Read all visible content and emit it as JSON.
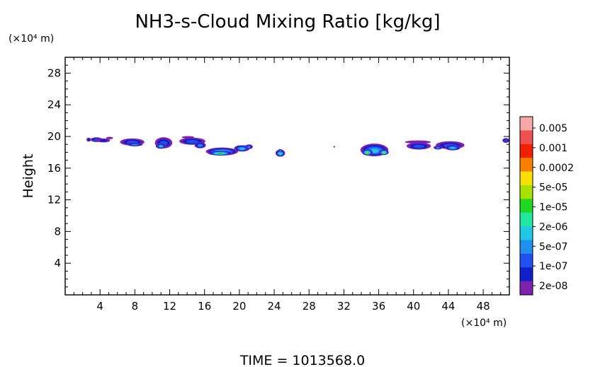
{
  "chart_data": {
    "type": "heatmap",
    "title": "NH3-s-Cloud Mixing Ratio [kg/kg]",
    "ylabel": "Height",
    "x_unit": "(×10⁴ m)",
    "y_unit": "(×10⁴ m)",
    "xlim": [
      0,
      51
    ],
    "ylim": [
      0,
      30
    ],
    "x_ticks": [
      4,
      8,
      12,
      16,
      20,
      24,
      28,
      32,
      36,
      40,
      44,
      48
    ],
    "y_ticks": [
      4,
      8,
      12,
      16,
      20,
      24,
      28
    ],
    "x_minor_step": 1,
    "y_minor_step": 1,
    "colorbar": {
      "labels": [
        "0.005",
        "0.001",
        "0.0002",
        "5e-05",
        "1e-05",
        "2e-06",
        "5e-07",
        "1e-07",
        "2e-08"
      ],
      "colors": [
        "#f8a8a8",
        "#f05050",
        "#f02000",
        "#f88000",
        "#f8e000",
        "#a8e000",
        "#20d820",
        "#20e8a0",
        "#20c8e8",
        "#2090f0",
        "#2050f0",
        "#1020c8",
        "#8020b0"
      ]
    },
    "cloud_regions": [
      {
        "x": 2.7,
        "y": 19.6,
        "w": 0.5,
        "h": 0.5,
        "level": 1
      },
      {
        "x": 3.6,
        "y": 19.6,
        "w": 1.4,
        "h": 0.6,
        "level": 2
      },
      {
        "x": 4.4,
        "y": 19.5,
        "w": 1.5,
        "h": 0.5,
        "level": 1
      },
      {
        "x": 5.1,
        "y": 19.8,
        "w": 0.8,
        "h": 0.3,
        "level": 0
      },
      {
        "x": 7.7,
        "y": 19.3,
        "w": 2.8,
        "h": 0.9,
        "level": 2
      },
      {
        "x": 8.0,
        "y": 19.0,
        "w": 1.8,
        "h": 0.5,
        "level": 3
      },
      {
        "x": 11.3,
        "y": 19.2,
        "w": 2.0,
        "h": 1.4,
        "level": 2
      },
      {
        "x": 11.0,
        "y": 18.8,
        "w": 1.2,
        "h": 0.7,
        "level": 4
      },
      {
        "x": 14.6,
        "y": 19.4,
        "w": 3.0,
        "h": 0.9,
        "level": 2
      },
      {
        "x": 14.1,
        "y": 19.9,
        "w": 1.4,
        "h": 0.3,
        "level": 0
      },
      {
        "x": 15.5,
        "y": 18.9,
        "w": 1.3,
        "h": 0.8,
        "level": 3
      },
      {
        "x": 18.0,
        "y": 18.1,
        "w": 3.7,
        "h": 1.0,
        "level": 5
      },
      {
        "x": 17.8,
        "y": 17.9,
        "w": 2.8,
        "h": 0.6,
        "level": 6
      },
      {
        "x": 20.3,
        "y": 18.5,
        "w": 1.8,
        "h": 0.8,
        "level": 4
      },
      {
        "x": 21.1,
        "y": 18.7,
        "w": 0.9,
        "h": 0.6,
        "level": 3
      },
      {
        "x": 24.7,
        "y": 17.9,
        "w": 1.1,
        "h": 0.9,
        "level": 5
      },
      {
        "x": 24.7,
        "y": 18.2,
        "w": 0.6,
        "h": 0.4,
        "level": 3
      },
      {
        "x": 30.9,
        "y": 18.7,
        "w": 0.2,
        "h": 0.2,
        "level": 0
      },
      {
        "x": 35.5,
        "y": 18.3,
        "w": 3.2,
        "h": 1.6,
        "level": 4
      },
      {
        "x": 34.7,
        "y": 18.0,
        "w": 1.2,
        "h": 0.8,
        "level": 7
      },
      {
        "x": 36.6,
        "y": 18.0,
        "w": 1.1,
        "h": 0.7,
        "level": 7
      },
      {
        "x": 40.6,
        "y": 18.8,
        "w": 2.8,
        "h": 0.9,
        "level": 2
      },
      {
        "x": 40.5,
        "y": 19.3,
        "w": 3.0,
        "h": 0.4,
        "level": 0
      },
      {
        "x": 44.2,
        "y": 18.9,
        "w": 3.3,
        "h": 1.0,
        "level": 2
      },
      {
        "x": 44.5,
        "y": 18.6,
        "w": 1.8,
        "h": 0.7,
        "level": 4
      },
      {
        "x": 42.8,
        "y": 18.6,
        "w": 1.0,
        "h": 0.5,
        "level": 3
      },
      {
        "x": 50.6,
        "y": 19.5,
        "w": 0.8,
        "h": 0.6,
        "level": 2
      }
    ]
  },
  "footer": {
    "time_label": "TIME  =  1013568.0"
  }
}
